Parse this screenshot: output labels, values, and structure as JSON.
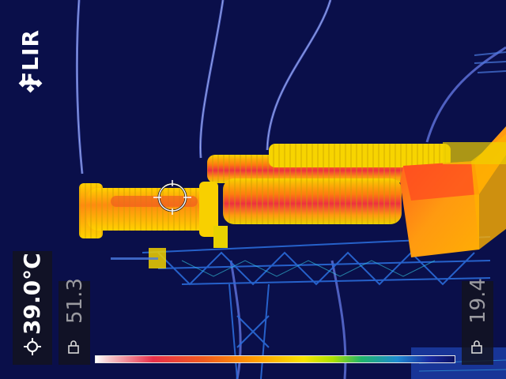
{
  "brand": {
    "name": "FLIR"
  },
  "measurement": {
    "spot_temp": "39.0°C",
    "max_value": "51.3",
    "min_value": "19.4"
  },
  "icons": {
    "spot": "crosshair-icon",
    "max_lock": "lock-icon",
    "min_lock": "lock-icon"
  },
  "palette": {
    "background": "#0a0f4a",
    "hot": "#e8304a",
    "warm": "#ff9a00",
    "mid": "#f7e400",
    "cool": "#1e8ad0",
    "cold": "#0a1060"
  }
}
